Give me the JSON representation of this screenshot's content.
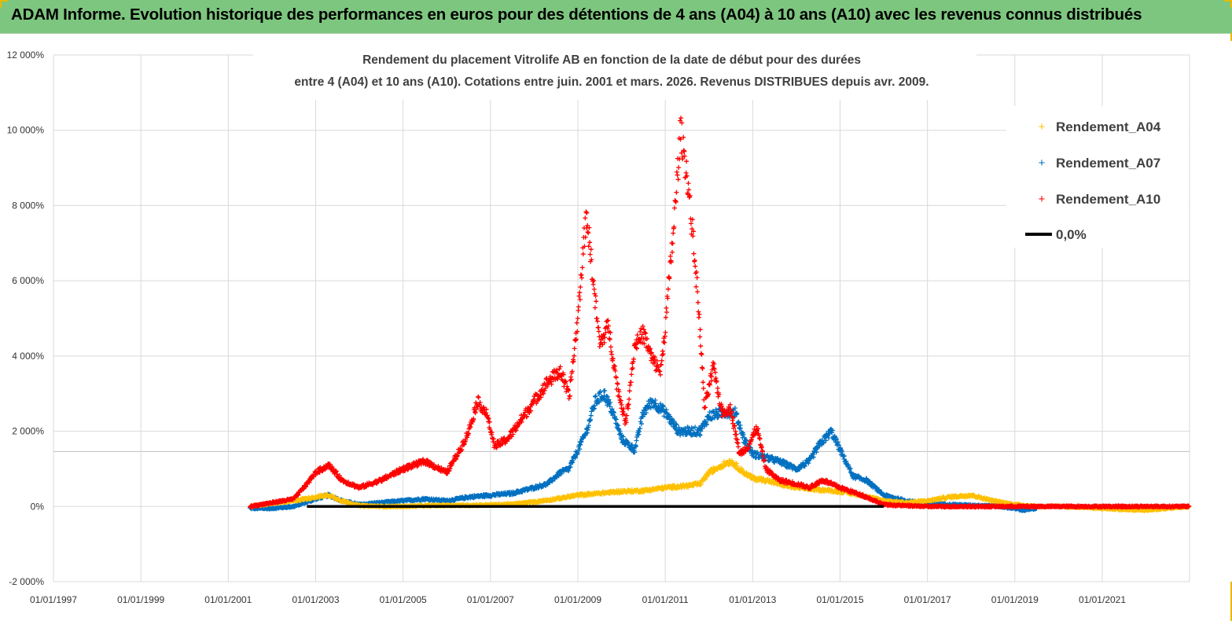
{
  "banner": {
    "title": "ADAM Informe. Evolution historique des performances en euros pour des détentions de 4 ans (A04) à 10 ans (A10) avec les revenus connus distribués",
    "background": "#7dc67f"
  },
  "chart_data": {
    "type": "scatter",
    "title_line1": "Rendement du placement Vitrolife AB en fonction de la date de début pour des durées",
    "title_line2": "entre 4 (A04) et 10 ans (A10). Cotations entre juin. 2001 et mars. 2026. Revenus DISTRIBUES depuis avr. 2009.",
    "x_ticks": [
      "01/01/1997",
      "01/01/1999",
      "01/01/2001",
      "01/01/2003",
      "01/01/2005",
      "01/01/2007",
      "01/01/2009",
      "01/01/2011",
      "01/01/2013",
      "01/01/2015",
      "01/01/2017",
      "01/01/2019",
      "01/01/2021"
    ],
    "y_ticks": [
      "-2 000%",
      "0%",
      "2 000%",
      "4 000%",
      "6 000%",
      "8 000%",
      "10 000%",
      "12 000%"
    ],
    "xlim": [
      "1997-01-01",
      "2022-12-31"
    ],
    "ylim": [
      -2000,
      12000
    ],
    "y_unit": "%",
    "grid": true,
    "legend_position": "top-right",
    "legend": [
      "Rendement_A04",
      "Rendement_A07",
      "Rendement_A10",
      "0,0%"
    ],
    "series": [
      {
        "name": "Rendement_A04",
        "color": "#ffc000",
        "marker": "plus",
        "x_years": [
          2001.5,
          2002.0,
          2002.5,
          2003.0,
          2003.3,
          2003.6,
          2004.0,
          2004.5,
          2005.0,
          2005.5,
          2006.0,
          2006.5,
          2007.0,
          2007.5,
          2008.0,
          2008.5,
          2009.0,
          2009.5,
          2010.0,
          2010.5,
          2011.0,
          2011.5,
          2011.8,
          2012.0,
          2012.3,
          2012.5,
          2012.8,
          2013.0,
          2013.3,
          2013.6,
          2014.0,
          2014.5,
          2015.0,
          2015.5,
          2016.0,
          2016.5,
          2017.0,
          2017.5,
          2018.0,
          2018.5,
          2019.0,
          2019.5,
          2020.0,
          2020.5,
          2021.0,
          2021.5,
          2022.0,
          2022.5,
          2022.99
        ],
        "values": [
          0,
          80,
          150,
          250,
          300,
          150,
          20,
          0,
          0,
          20,
          30,
          30,
          40,
          60,
          120,
          200,
          300,
          350,
          400,
          420,
          500,
          550,
          600,
          900,
          1100,
          1200,
          900,
          750,
          700,
          600,
          500,
          450,
          400,
          300,
          150,
          100,
          150,
          250,
          300,
          150,
          50,
          0,
          0,
          -20,
          -50,
          -80,
          -100,
          -50,
          0
        ]
      },
      {
        "name": "Rendement_A07",
        "color": "#0070c0",
        "marker": "plus",
        "x_years": [
          2001.5,
          2002.0,
          2002.5,
          2003.0,
          2003.3,
          2003.6,
          2004.0,
          2004.5,
          2005.0,
          2005.5,
          2006.0,
          2006.5,
          2007.0,
          2007.5,
          2008.0,
          2008.3,
          2008.6,
          2008.8,
          2009.0,
          2009.2,
          2009.4,
          2009.6,
          2009.8,
          2010.0,
          2010.3,
          2010.5,
          2010.7,
          2011.0,
          2011.3,
          2011.5,
          2011.8,
          2012.0,
          2012.3,
          2012.6,
          2012.8,
          2013.0,
          2013.3,
          2013.6,
          2014.0,
          2014.3,
          2014.5,
          2014.8,
          2015.0,
          2015.3,
          2015.6,
          2016.0,
          2016.5,
          2017.0,
          2017.5,
          2018.0,
          2018.5,
          2019.0,
          2019.2,
          2019.5
        ],
        "values": [
          -50,
          -50,
          0,
          200,
          300,
          150,
          50,
          100,
          150,
          200,
          150,
          250,
          300,
          350,
          500,
          600,
          900,
          1000,
          1500,
          2000,
          2800,
          3000,
          2500,
          1800,
          1500,
          2500,
          2800,
          2500,
          2000,
          2000,
          2000,
          2400,
          2500,
          2500,
          1800,
          1400,
          1300,
          1200,
          1000,
          1200,
          1600,
          2000,
          1500,
          800,
          700,
          300,
          150,
          80,
          50,
          30,
          20,
          -50,
          -100,
          -50
        ]
      },
      {
        "name": "Rendement_A10",
        "color": "#ff0000",
        "marker": "plus",
        "x_years": [
          2001.5,
          2002.0,
          2002.5,
          2002.8,
          2003.0,
          2003.3,
          2003.6,
          2004.0,
          2004.5,
          2005.0,
          2005.5,
          2006.0,
          2006.3,
          2006.5,
          2006.7,
          2006.9,
          2007.1,
          2007.4,
          2007.7,
          2008.0,
          2008.3,
          2008.6,
          2008.8,
          2009.0,
          2009.1,
          2009.2,
          2009.35,
          2009.5,
          2009.7,
          2009.9,
          2010.1,
          2010.3,
          2010.5,
          2010.7,
          2010.9,
          2011.0,
          2011.2,
          2011.35,
          2011.5,
          2011.6,
          2011.75,
          2011.9,
          2012.1,
          2012.3,
          2012.5,
          2012.7,
          2012.9,
          2013.1,
          2013.3,
          2013.6,
          2014.0,
          2014.3,
          2014.6,
          2015.0,
          2015.5,
          2016.0,
          2016.5,
          2017.0,
          2018.0,
          2019.0,
          2020.0,
          2021.0,
          2022.0,
          2022.99
        ],
        "values": [
          0,
          100,
          200,
          600,
          900,
          1100,
          700,
          500,
          700,
          1000,
          1200,
          900,
          1500,
          2000,
          2800,
          2500,
          1600,
          1800,
          2300,
          2800,
          3300,
          3600,
          2900,
          5000,
          6500,
          7800,
          6000,
          4300,
          4800,
          3200,
          2200,
          4300,
          4600,
          3900,
          3600,
          4800,
          7500,
          10000,
          8800,
          7600,
          5500,
          2600,
          3700,
          2500,
          2600,
          1400,
          1600,
          2100,
          1000,
          700,
          600,
          500,
          700,
          500,
          300,
          50,
          20,
          0,
          0,
          0,
          0,
          0,
          0,
          0
        ]
      },
      {
        "name": "0,0%",
        "color": "#000000",
        "marker": "line",
        "x_years": [
          2002.8,
          2016.0
        ],
        "values": [
          0,
          0
        ]
      }
    ]
  }
}
